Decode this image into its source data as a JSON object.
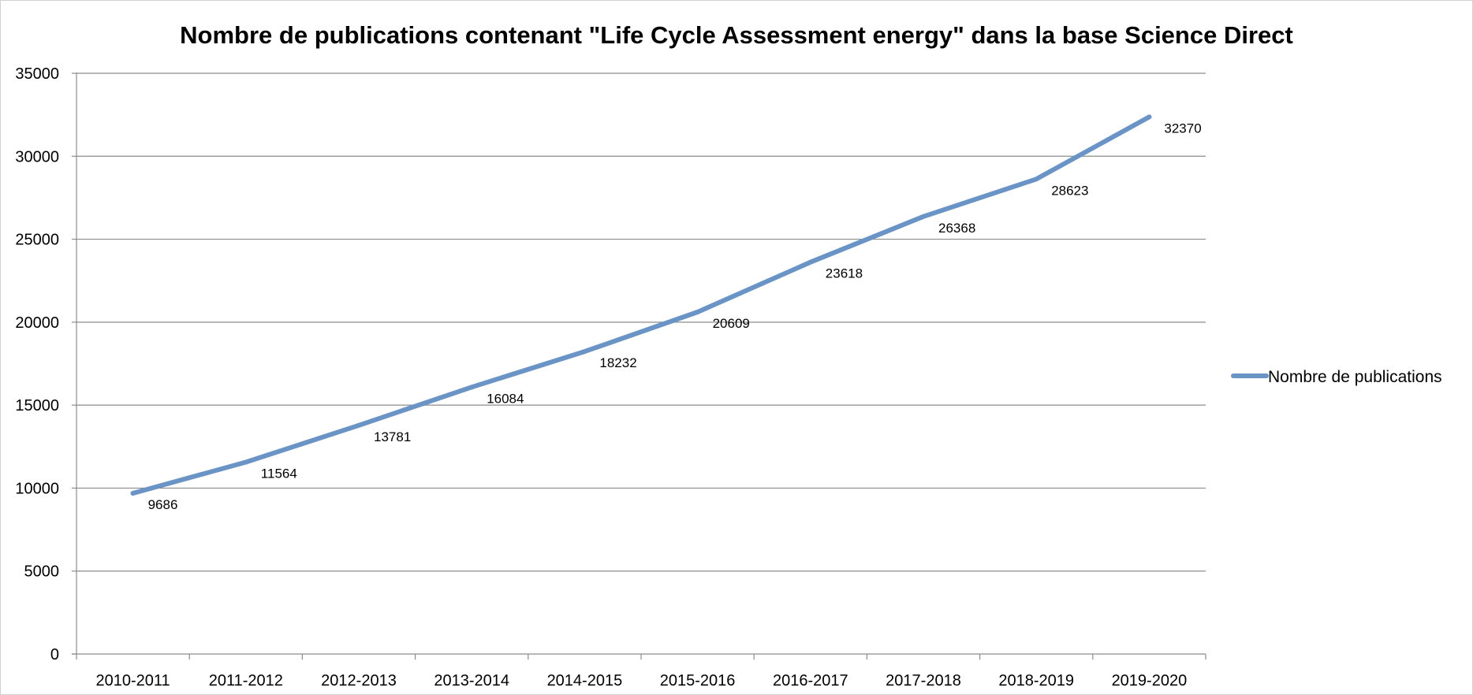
{
  "chart_data": {
    "type": "line",
    "title": "Nombre de publications contenant \"Life Cycle Assessment energy\" dans la base Science Direct",
    "xlabel": "",
    "ylabel": "",
    "categories": [
      "2010-2011",
      "2011-2012",
      "2012-2013",
      "2013-2014",
      "2014-2015",
      "2015-2016",
      "2016-2017",
      "2017-2018",
      "2018-2019",
      "2019-2020"
    ],
    "series": [
      {
        "name": "Nombre de publications",
        "values": [
          9686,
          11564,
          13781,
          16084,
          18232,
          20609,
          23618,
          26368,
          28623,
          32370
        ],
        "color": "#6a93c6"
      }
    ],
    "y_ticks": [
      "0",
      "5000",
      "10000",
      "15000",
      "20000",
      "25000",
      "30000",
      "35000"
    ],
    "data_labels": [
      "9686",
      "11564",
      "13781",
      "16084",
      "18232",
      "20609",
      "23618",
      "26368",
      "28623",
      "32370"
    ],
    "ylim": [
      0,
      35000
    ],
    "grid": "horizontal",
    "legend_position": "right",
    "gridline_color": "#8c8c8c",
    "axis_color": "#8c8c8c"
  }
}
